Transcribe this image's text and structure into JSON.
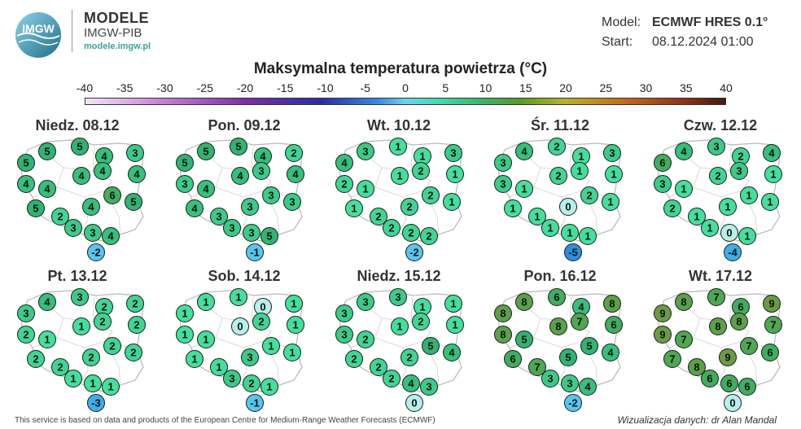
{
  "logo": {
    "text": "IMGW",
    "icon": "imgw-logo-icon"
  },
  "brand": {
    "name": "MODELE",
    "org": "IMGW-PIB",
    "url": "modele.imgw.pl"
  },
  "meta": {
    "model_label": "Model:",
    "model_value": "ECMWF HRES 0.1°",
    "start_label": "Start:",
    "start_value": "08.12.2024 01:00"
  },
  "title": "Maksymalna temperatura powietrza (°C)",
  "scale": {
    "ticks": [
      -40,
      -35,
      -30,
      -25,
      -20,
      -15,
      -10,
      -5,
      0,
      5,
      10,
      15,
      20,
      25,
      30,
      35,
      40
    ],
    "min": -40,
    "max": 40
  },
  "maps": [
    {
      "day": "Niedz. 08.12",
      "values": [
        5,
        5,
        5,
        4,
        3,
        4,
        4,
        4,
        4,
        4,
        5,
        2,
        4,
        6,
        5,
        3,
        3,
        4,
        -2
      ]
    },
    {
      "day": "Pon. 09.12",
      "values": [
        5,
        5,
        5,
        4,
        2,
        3,
        4,
        4,
        3,
        4,
        4,
        3,
        3,
        3,
        3,
        3,
        3,
        5,
        -1
      ]
    },
    {
      "day": "Wt. 10.12",
      "values": [
        4,
        3,
        1,
        1,
        3,
        2,
        1,
        1,
        2,
        1,
        1,
        2,
        2,
        2,
        1,
        2,
        2,
        2,
        -2
      ]
    },
    {
      "day": "Śr. 11.12",
      "values": [
        3,
        4,
        2,
        1,
        3,
        3,
        1,
        2,
        1,
        1,
        1,
        1,
        0,
        2,
        1,
        1,
        1,
        1,
        -5
      ]
    },
    {
      "day": "Czw. 12.12",
      "values": [
        6,
        4,
        3,
        2,
        4,
        3,
        1,
        2,
        3,
        1,
        2,
        1,
        1,
        1,
        1,
        1,
        0,
        1,
        -4
      ]
    },
    {
      "day": "Pt. 13.12",
      "values": [
        3,
        4,
        3,
        2,
        2,
        2,
        1,
        1,
        2,
        2,
        2,
        2,
        2,
        2,
        2,
        1,
        1,
        1,
        -3
      ]
    },
    {
      "day": "Sob. 14.12",
      "values": [
        1,
        1,
        1,
        0,
        1,
        1,
        1,
        0,
        2,
        1,
        1,
        1,
        3,
        1,
        1,
        3,
        2,
        1,
        -1
      ]
    },
    {
      "day": "Niedz. 15.12",
      "values": [
        3,
        3,
        3,
        1,
        1,
        3,
        2,
        1,
        2,
        1,
        2,
        2,
        2,
        5,
        4,
        2,
        4,
        3,
        0
      ]
    },
    {
      "day": "Pon. 16.12",
      "values": [
        8,
        8,
        6,
        4,
        8,
        8,
        5,
        8,
        7,
        6,
        6,
        7,
        5,
        5,
        4,
        3,
        3,
        4,
        -2
      ]
    },
    {
      "day": "Wt. 17.12",
      "values": [
        9,
        8,
        7,
        6,
        9,
        9,
        7,
        8,
        8,
        7,
        7,
        8,
        9,
        7,
        6,
        6,
        6,
        6,
        0
      ]
    }
  ],
  "footer": "This service is based on data and products of the European Centre for Medium-Range Weather Forecasts (ECMWF)",
  "credit": "Wizualizacja danych: dr Alan Mandal"
}
